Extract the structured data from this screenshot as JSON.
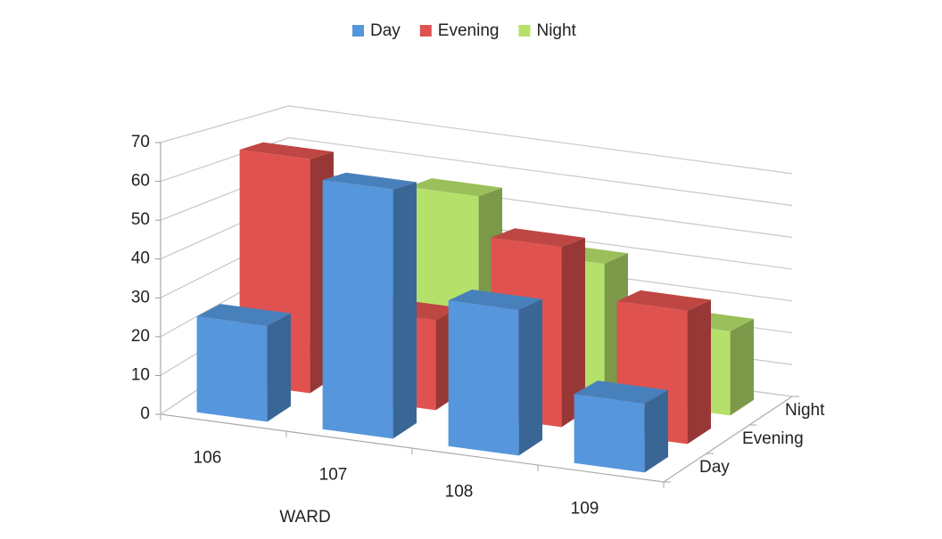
{
  "chart_data": {
    "type": "bar3d",
    "categories": [
      "106",
      "107",
      "108",
      "109"
    ],
    "x_label": "WARD",
    "series": [
      {
        "name": "Day",
        "color": "#5596dc",
        "values": [
          25,
          65,
          38,
          18
        ]
      },
      {
        "name": "Evening",
        "color": "#e0524f",
        "values": [
          65,
          25,
          50,
          37
        ]
      },
      {
        "name": "Night",
        "color": "#b5e16b",
        "values": [
          0,
          55,
          40,
          25
        ]
      }
    ],
    "ylim": [
      0,
      70
    ],
    "yticks": [
      0,
      10,
      20,
      30,
      40,
      50,
      60,
      70
    ],
    "grid": true,
    "legend": "top"
  }
}
